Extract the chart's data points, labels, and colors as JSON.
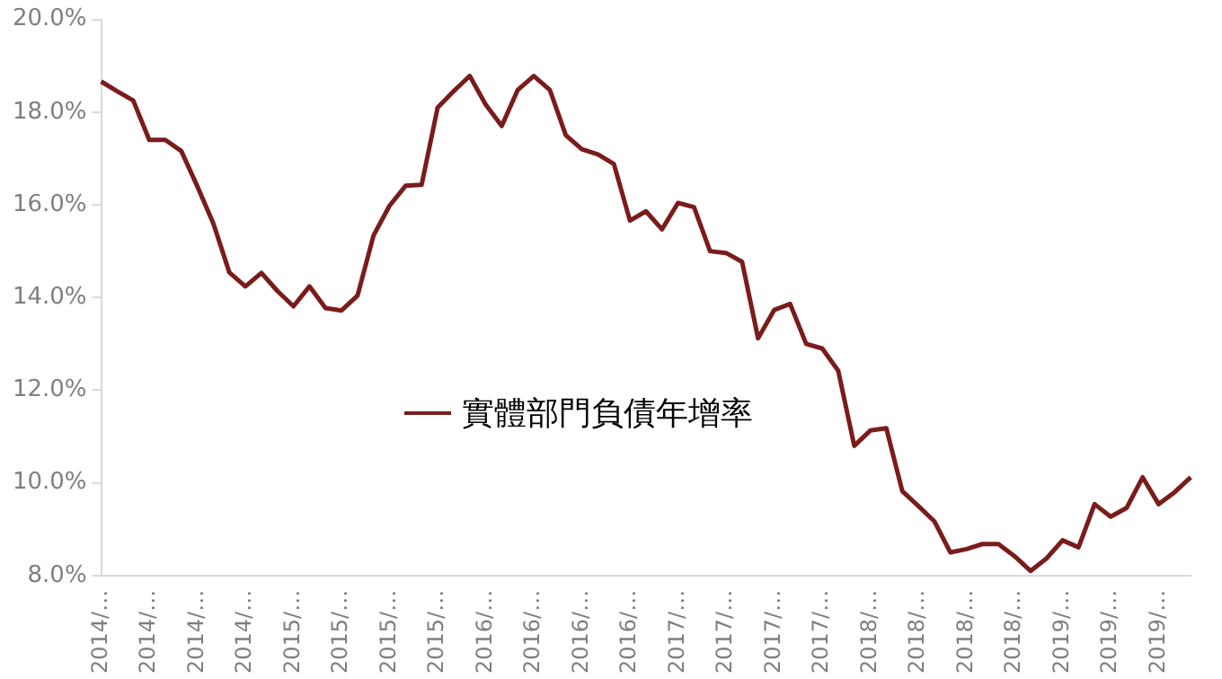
{
  "chart_data": {
    "type": "line",
    "categories": [
      "2014/…",
      null,
      null,
      "2014/…",
      null,
      null,
      "2014/…",
      null,
      null,
      "2014/…",
      null,
      null,
      "2015/…",
      null,
      null,
      "2015/…",
      null,
      null,
      "2015/…",
      null,
      null,
      "2015/…",
      null,
      null,
      "2016/…",
      null,
      null,
      "2016/…",
      null,
      null,
      "2016/…",
      null,
      null,
      "2016/…",
      null,
      null,
      "2017/…",
      null,
      null,
      "2017/…",
      null,
      null,
      "2017/…",
      null,
      null,
      "2017/…",
      null,
      null,
      "2018/…",
      null,
      null,
      "2018/…",
      null,
      null,
      "2018/…",
      null,
      null,
      "2018/…",
      null,
      null,
      "2019/…",
      null,
      null,
      "2019/…",
      null,
      null,
      "2019/…",
      null,
      null
    ],
    "series": [
      {
        "name": "實體部門負債年增率",
        "color": "#7a1c1c",
        "values": [
          18.66,
          18.45,
          18.25,
          17.4,
          17.4,
          17.16,
          16.4,
          15.6,
          14.54,
          14.24,
          14.53,
          14.14,
          13.81,
          14.24,
          13.77,
          13.72,
          14.04,
          15.34,
          15.98,
          16.41,
          16.43,
          18.1,
          18.45,
          18.78,
          18.16,
          17.7,
          18.48,
          18.78,
          18.48,
          17.5,
          17.2,
          17.09,
          16.88,
          15.66,
          15.86,
          15.47,
          16.04,
          15.95,
          15.0,
          14.96,
          14.77,
          13.12,
          13.73,
          13.86,
          13.0,
          12.9,
          12.42,
          10.8,
          11.13,
          11.18,
          9.82,
          9.5,
          9.17,
          8.5,
          8.57,
          8.68,
          8.68,
          8.42,
          8.1,
          8.37,
          8.76,
          8.61,
          9.54,
          9.27,
          9.46,
          10.12,
          9.54,
          9.8,
          10.12
        ]
      }
    ],
    "ylim": [
      8,
      20
    ],
    "yticks": [
      {
        "value": 8,
        "label": "8.0%"
      },
      {
        "value": 10,
        "label": "10.0%"
      },
      {
        "value": 12,
        "label": "12.0%"
      },
      {
        "value": 14,
        "label": "14.0%"
      },
      {
        "value": 16,
        "label": "16.0%"
      },
      {
        "value": 18,
        "label": "18.0%"
      },
      {
        "value": 20,
        "label": "20.0%"
      }
    ],
    "grid": false,
    "legend": "center",
    "marker": "none",
    "line_style": "solid"
  }
}
